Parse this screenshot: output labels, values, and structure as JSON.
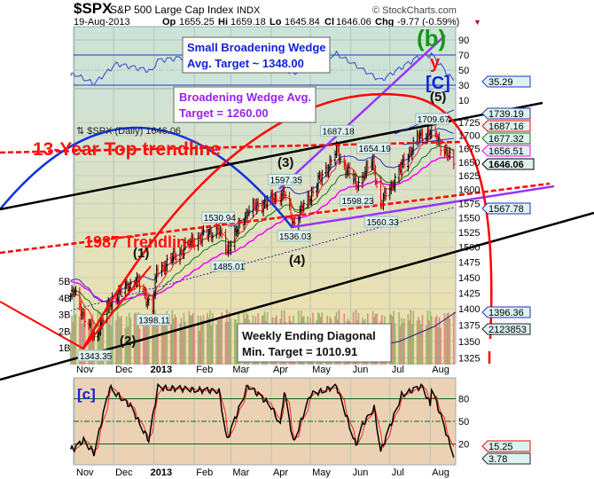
{
  "header": {
    "symbol": "$SPX",
    "name": "S&P 500 Large Cap Index",
    "exchange": "INDX",
    "date": "19-Aug-2013",
    "op_label": "Op",
    "op": "1655.25",
    "hi_label": "Hi",
    "hi": "1659.18",
    "lo_label": "Lo",
    "lo": "1645.84",
    "cl_label": "Cl",
    "cl": "1646.06",
    "chg_label": "Chg",
    "chg": "-9.77 (-0.59%)",
    "watermark": "© StockCharts.com"
  },
  "annotations": {
    "small_wedge_1": "Small Broadening Wedge",
    "small_wedge_2": "Avg. Target ~ 1348.00",
    "wedge_1": "Broadening Wedge Avg.",
    "wedge_2": "Target = 1260.00",
    "diag_1": "Weekly Ending Diagonal",
    "diag_2": "Min. Target = 1010.91",
    "top_trendline": "13-Year Top trendline",
    "trend_1987": "1987 Trendline",
    "w1": "(1)",
    "w2": "(2)",
    "w3": "(3)",
    "w4": "(4)",
    "w5": "(5)",
    "b": "(b)",
    "y": "y",
    "C": "[C]",
    "c": "[c]",
    "legend": "⇅ $SPX (Daily) 1646.06"
  },
  "colors": {
    "up": "#000000",
    "down": "#dd0000",
    "ema_fast": "#ee2222",
    "ema_mid": "#117711",
    "sma": "#ff00ff",
    "ma_long": "#2222aa",
    "annotation_red": "#ff0000",
    "purple": "#9933ff",
    "blue_arc": "#1133dd"
  },
  "chart_data": [
    {
      "type": "ohlc",
      "title": "$SPX (Daily)",
      "scale": "log",
      "ylim": [
        1320,
        1760
      ],
      "x_ticks": [
        "Nov",
        "Dec",
        "2013",
        "Feb",
        "Mar",
        "Apr",
        "May",
        "Jun",
        "Jul",
        "Aug"
      ],
      "y_ticks": [
        1325,
        1350,
        1375,
        1400,
        1425,
        1450,
        1475,
        1500,
        1525,
        1550,
        1575,
        1600,
        1625,
        1650,
        1675,
        1700,
        1725
      ],
      "price_path": [
        [
          "2012-10-26",
          1412
        ],
        [
          "2012-11-01",
          1427
        ],
        [
          "2012-11-07",
          1395
        ],
        [
          "2012-11-16",
          1353
        ],
        [
          "2012-11-30",
          1416
        ],
        [
          "2012-12-18",
          1446
        ],
        [
          "2012-12-31",
          1402
        ],
        [
          "2013-01-03",
          1460
        ],
        [
          "2013-02-01",
          1513
        ],
        [
          "2013-02-19",
          1530
        ],
        [
          "2013-02-26",
          1496
        ],
        [
          "2013-03-14",
          1563
        ],
        [
          "2013-04-11",
          1593
        ],
        [
          "2013-04-18",
          1541
        ],
        [
          "2013-05-21",
          1669
        ],
        [
          "2013-06-05",
          1608
        ],
        [
          "2013-06-18",
          1652
        ],
        [
          "2013-06-24",
          1573
        ],
        [
          "2013-07-22",
          1695
        ],
        [
          "2013-08-02",
          1709
        ],
        [
          "2013-08-19",
          1646.06
        ]
      ],
      "pivot_labels": [
        {
          "date": "2012-11-16",
          "value": "1343.35"
        },
        {
          "date": "2012-12-31",
          "value": "1398.11"
        },
        {
          "date": "2013-02-19",
          "value": "1530.94"
        },
        {
          "date": "2013-02-26",
          "value": "1485.01"
        },
        {
          "date": "2013-04-11",
          "value": "1597.35"
        },
        {
          "date": "2013-04-18",
          "value": "1536.03"
        },
        {
          "date": "2013-05-21",
          "value": "1687.18"
        },
        {
          "date": "2013-06-05",
          "value": "1598.23"
        },
        {
          "date": "2013-06-18",
          "value": "1654.19"
        },
        {
          "date": "2013-06-24",
          "value": "1560.33"
        },
        {
          "date": "2013-08-02",
          "value": "1709.67"
        }
      ],
      "last_value_tags": {
        "upper": "1739.19",
        "top_trend": "1687.16",
        "ema_mid": "1677.32",
        "sma": "1656.51",
        "close": "1646.06",
        "ma_long": "1567.78",
        "lower": "1396.36",
        "volume": "2123853"
      },
      "volume_ticks": [
        "1B",
        "2B",
        "3B",
        "4B",
        "5B"
      ]
    },
    {
      "type": "line",
      "panel": "RSI",
      "y_ticks": [
        90,
        70,
        50,
        30,
        10
      ],
      "ylim": [
        10,
        95
      ],
      "last": "35.29",
      "points": [
        [
          "2012-10-26",
          40
        ],
        [
          "2012-11-01",
          45
        ],
        [
          "2012-11-16",
          32
        ],
        [
          "2012-12-03",
          58
        ],
        [
          "2012-12-31",
          48
        ],
        [
          "2013-01-03",
          62
        ],
        [
          "2013-02-01",
          68
        ],
        [
          "2013-02-26",
          55
        ],
        [
          "2013-03-14",
          70
        ],
        [
          "2013-04-18",
          46
        ],
        [
          "2013-05-21",
          72
        ],
        [
          "2013-06-24",
          36
        ],
        [
          "2013-07-22",
          66
        ],
        [
          "2013-08-02",
          70
        ],
        [
          "2013-08-19",
          35.29
        ]
      ]
    },
    {
      "type": "line",
      "panel": "Stochastic",
      "y_ticks": [
        80,
        50,
        20
      ],
      "ylim": [
        0,
        100
      ],
      "last_k": "3.78",
      "last_d": "15.25",
      "points": [
        [
          "2012-10-26",
          12
        ],
        [
          "2012-11-01",
          14
        ],
        [
          "2012-11-08",
          25
        ],
        [
          "2012-11-16",
          8
        ],
        [
          "2012-11-28",
          95
        ],
        [
          "2012-12-14",
          70
        ],
        [
          "2012-12-28",
          25
        ],
        [
          "2013-01-04",
          95
        ],
        [
          "2013-02-20",
          90
        ],
        [
          "2013-02-26",
          25
        ],
        [
          "2013-03-14",
          98
        ],
        [
          "2013-04-01",
          70
        ],
        [
          "2013-04-08",
          45
        ],
        [
          "2013-04-11",
          90
        ],
        [
          "2013-04-18",
          22
        ],
        [
          "2013-05-01",
          85
        ],
        [
          "2013-05-21",
          97
        ],
        [
          "2013-06-05",
          18
        ],
        [
          "2013-06-10",
          45
        ],
        [
          "2013-06-19",
          68
        ],
        [
          "2013-06-24",
          10
        ],
        [
          "2013-07-10",
          85
        ],
        [
          "2013-07-26",
          97
        ],
        [
          "2013-08-01",
          72
        ],
        [
          "2013-08-02",
          95
        ],
        [
          "2013-08-19",
          3.78
        ]
      ]
    }
  ]
}
